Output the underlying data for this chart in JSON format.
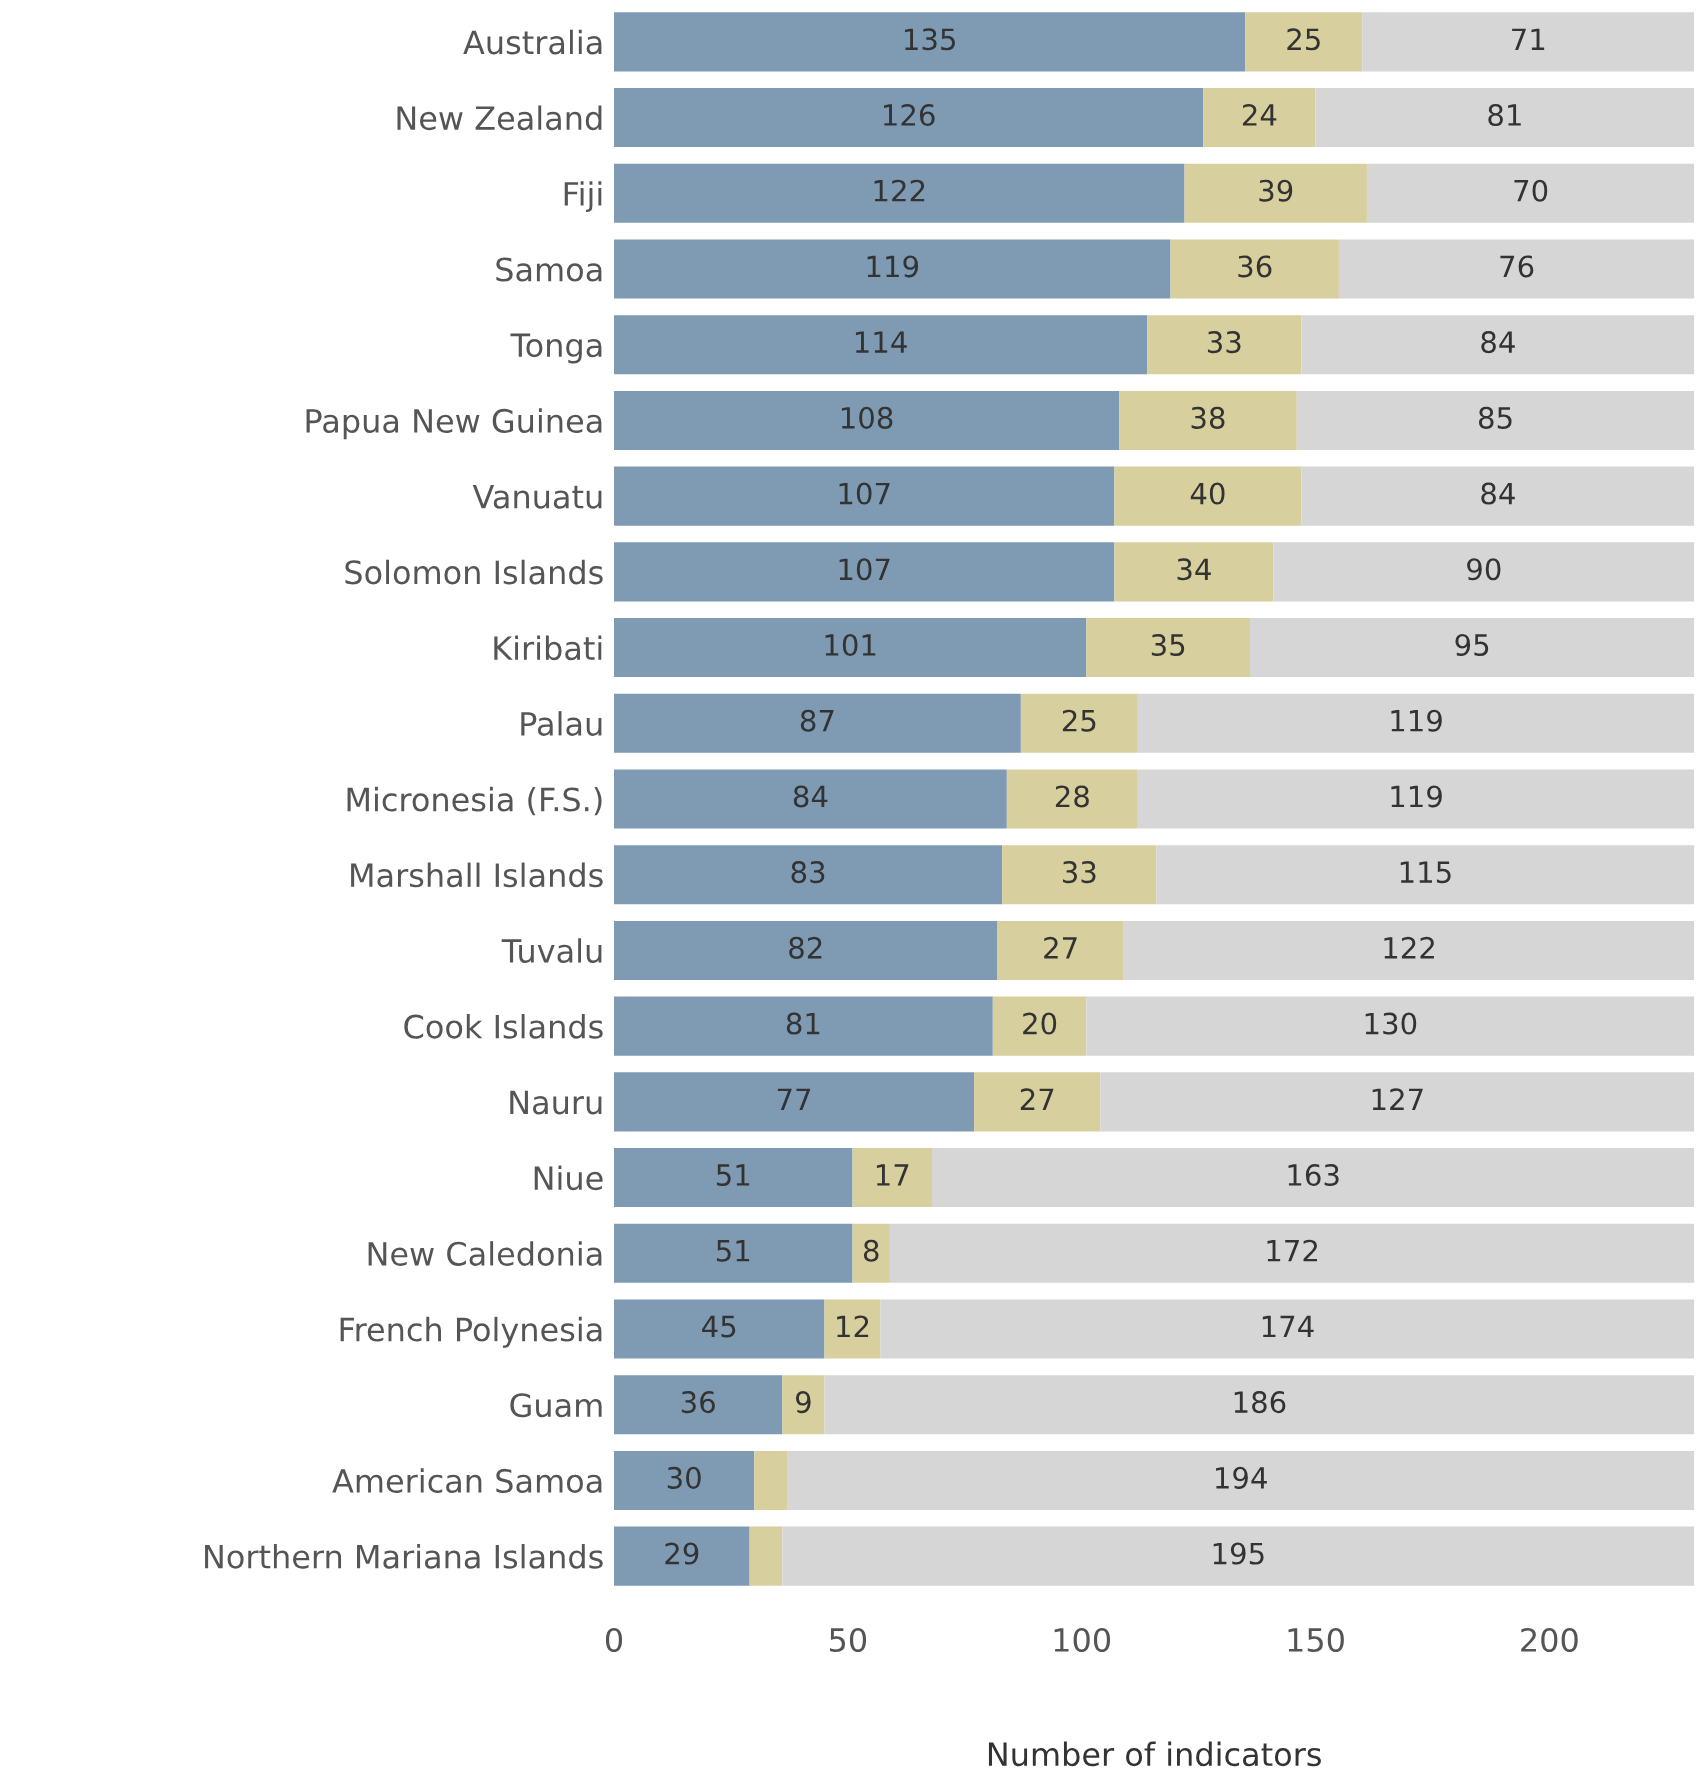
{
  "chart_data": {
    "type": "bar",
    "orientation": "horizontal",
    "stacked": true,
    "xlabel": "Number of indicators",
    "categories": [
      "Australia",
      "New Zealand",
      "Fiji",
      "Samoa",
      "Tonga",
      "Papua New Guinea",
      "Vanuatu",
      "Solomon Islands",
      "Kiribati",
      "Palau",
      "Micronesia (F.S.)",
      "Marshall Islands",
      "Tuvalu",
      "Cook Islands",
      "Nauru",
      "Niue",
      "New Caledonia",
      "French Polynesia",
      "Guam",
      "American Samoa",
      "Northern Mariana Islands"
    ],
    "series": [
      {
        "color": "#7f9bb3",
        "values": [
          135,
          126,
          122,
          119,
          114,
          108,
          107,
          107,
          101,
          87,
          84,
          83,
          82,
          81,
          77,
          51,
          51,
          45,
          36,
          30,
          29
        ],
        "value_labels": [
          "135",
          "126",
          "122",
          "119",
          "114",
          "108",
          "107",
          "107",
          "101",
          "87",
          "84",
          "83",
          "82",
          "81",
          "77",
          "51",
          "51",
          "45",
          "36",
          "30",
          "29"
        ]
      },
      {
        "color": "#d8cf9f",
        "values": [
          25,
          24,
          39,
          36,
          33,
          38,
          40,
          34,
          35,
          25,
          28,
          33,
          27,
          20,
          27,
          17,
          8,
          12,
          9,
          7,
          7
        ],
        "value_labels": [
          "25",
          "24",
          "39",
          "36",
          "33",
          "38",
          "40",
          "34",
          "35",
          "25",
          "28",
          "33",
          "27",
          "20",
          "27",
          "17",
          "8",
          "12",
          "9",
          null,
          null
        ]
      },
      {
        "color": "#d6d6d6",
        "values": [
          71,
          81,
          70,
          76,
          84,
          85,
          84,
          90,
          95,
          119,
          119,
          115,
          122,
          130,
          127,
          163,
          172,
          174,
          186,
          194,
          195
        ],
        "value_labels": [
          "71",
          "81",
          "70",
          "76",
          "84",
          "85",
          "84",
          "90",
          "95",
          "119",
          "119",
          "115",
          "122",
          "130",
          "127",
          "163",
          "172",
          "174",
          "186",
          "194",
          "195"
        ]
      }
    ],
    "xlim": [
      0,
      231
    ],
    "xticks": [
      0,
      50,
      100,
      150,
      200
    ],
    "grid": false,
    "legend": false
  }
}
